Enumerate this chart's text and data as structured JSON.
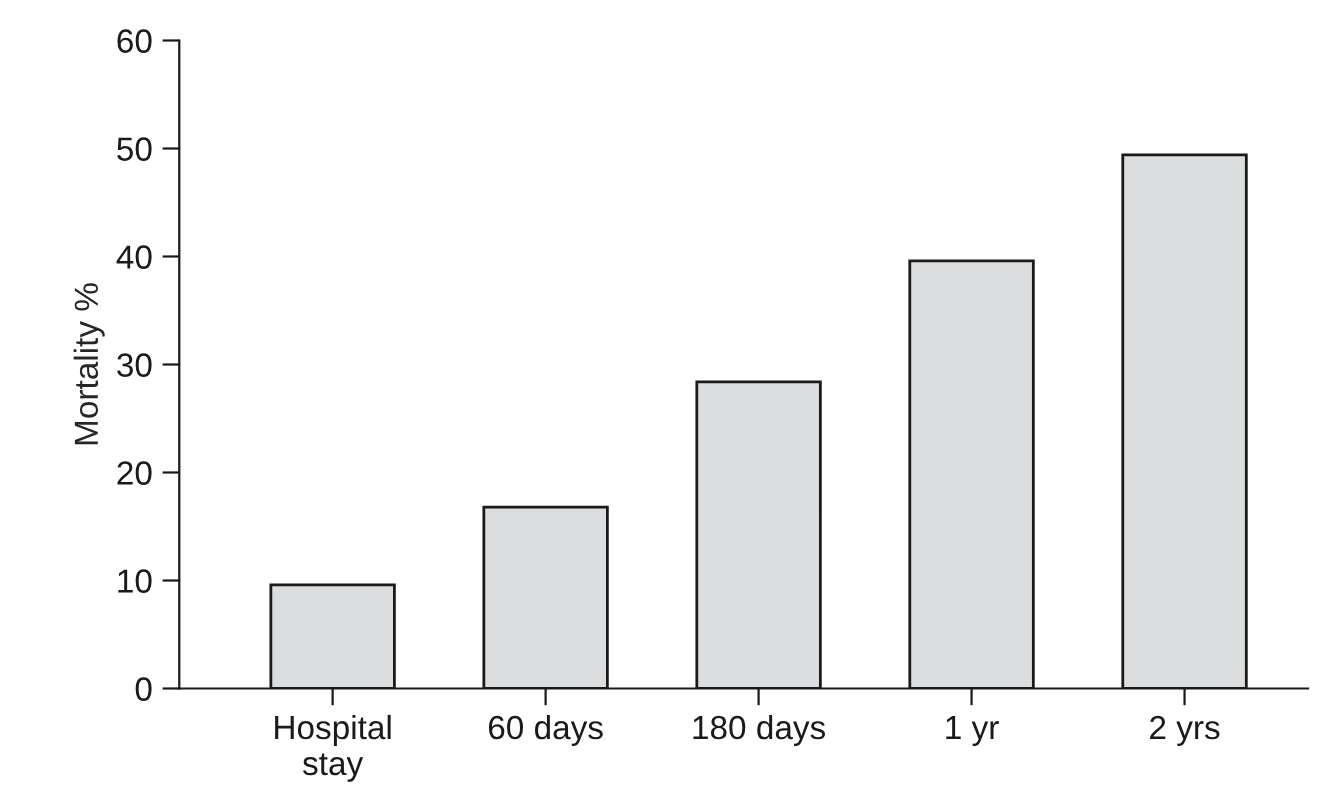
{
  "chart_data": {
    "type": "bar",
    "ylabel": "Mortality %",
    "categories": [
      "Hospital\nstay",
      "60 days",
      "180 days",
      "1 yr",
      "2 yrs"
    ],
    "values": [
      9.6,
      16.8,
      28.4,
      39.6,
      49.4
    ],
    "color": "#dcdddf",
    "ylim": [
      0,
      60
    ],
    "yticks": [
      0,
      10,
      20,
      30,
      40,
      50,
      60
    ],
    "grid": false,
    "legend": false
  }
}
